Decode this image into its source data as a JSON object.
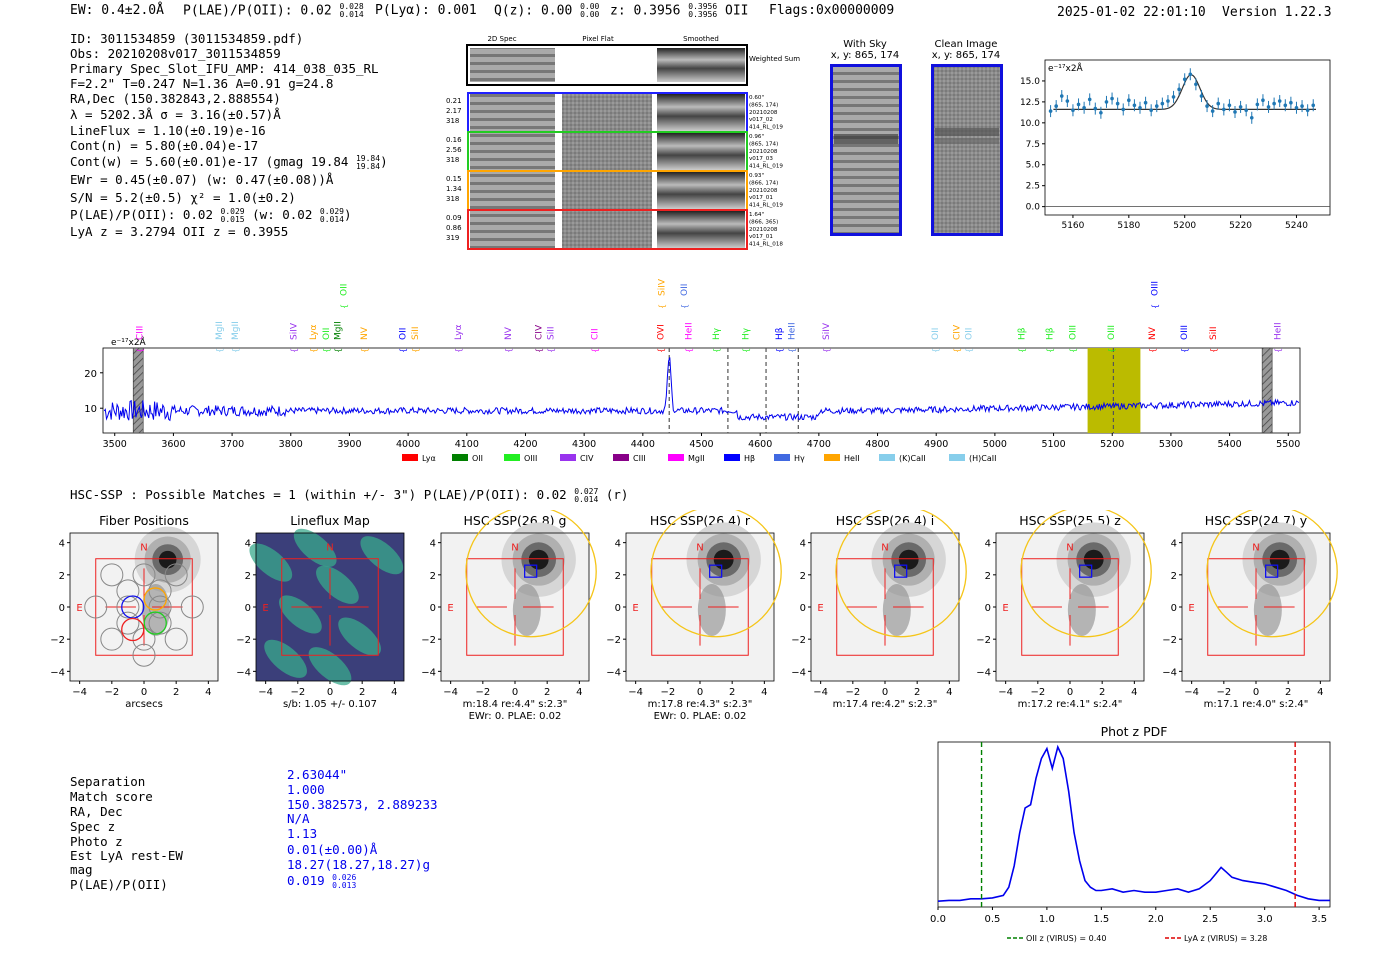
{
  "header": {
    "ew": "EW: 0.4±2.0Å",
    "plae_label": "P(LAE)/P(OII): 0.02",
    "plae_hi": "0.028",
    "plae_lo": "0.014",
    "plya": "P(Lyα): 0.001",
    "qz_label": "Q(z): 0.00",
    "qz_hi": "0.00",
    "qz_lo": "0.00",
    "z_label": "z: 0.3956",
    "z_hi": "0.3956",
    "z_lo": "0.3956",
    "z_line": "OII",
    "flags": "Flags:0x00000009",
    "timestamp": "2025-01-02 22:01:10",
    "version": "Version 1.22.3"
  },
  "info": {
    "id": "ID: 3011534859 (3011534859.pdf)",
    "obs": "Obs: 20210208v017_3011534859",
    "primary": "Primary Spec_Slot_IFU_AMP: 414_038_035_RL",
    "params": "F=2.2\"  T=0.247  N=1.36  A=0.91  g=24.8",
    "radec": "RA,Dec (150.382843,2.888554)",
    "lambda": "λ = 5202.3Å   σ = 3.16(±0.57)Å",
    "lineflux": "LineFlux = 1.10(±0.19)e-16",
    "contn": "Cont(n) = 5.80(±0.04)e-17",
    "contw": "Cont(w) = 5.60(±0.01)e-17 (gmag 19.84",
    "contw_hi": "19.84",
    "contw_lo": "19.84",
    "contw_end": ")",
    "ewr": "EWr = 0.45(±0.07) (w: 0.47(±0.08))Å",
    "sn": "S/N = 5.2(±0.5)  χ² = 1.0(±0.2)",
    "plae": "P(LAE)/P(OII): 0.02",
    "plae_hi": "0.029",
    "plae_lo": "0.015",
    "plae_w": "(w: 0.02",
    "plae_w_hi": "0.029",
    "plae_w_lo": "0.014",
    "plae_w_end": ")",
    "lyaz": "LyA z = 3.2794   OII z = 0.3955"
  },
  "cutouts": {
    "col_labels": [
      "2D Spec",
      "Pixel Flat",
      "Smoothed"
    ],
    "weighted_sum": "Weighted Sum",
    "rows": [
      {
        "left": [
          "0.21",
          "2.17",
          "318"
        ],
        "right": [
          "0.60\"",
          "(865, 174)",
          "20210208",
          "v017_02",
          "414_RL_019"
        ],
        "color": "#2020ff"
      },
      {
        "left": [
          "0.16",
          "2.56",
          "318"
        ],
        "right": [
          "0.96\"",
          "(865, 174)",
          "20210208",
          "v017_03",
          "414_RL_019"
        ],
        "color": "#22cc22"
      },
      {
        "left": [
          "0.15",
          "1.34",
          "318"
        ],
        "right": [
          "0.93\"",
          "(866, 174)",
          "20210208",
          "v017_01",
          "414_RL_019"
        ],
        "color": "#ffa500"
      },
      {
        "left": [
          "0.09",
          "0.86",
          "319"
        ],
        "right": [
          "1.64\"",
          "(866, 365)",
          "20210208",
          "v017_01",
          "414_RL_018"
        ],
        "color": "#ee2020"
      }
    ],
    "with_sky_title": "With Sky",
    "with_sky_xy": "x, y: 865, 174",
    "clean_title": "Clean Image",
    "clean_xy": "x, y: 865, 174"
  },
  "colors": {
    "blue": "#0000ee",
    "lya": "#ff0000",
    "oii": "#008000",
    "oiii": "#22ee22",
    "civ": "#9933ee",
    "ciii": "#880088",
    "mgii": "#ff00ff",
    "hbeta": "#0000ff",
    "hgamma": "#4169e1",
    "heii": "#ffa500",
    "kcaii": "#87ceeb",
    "hcaii": "#87ceeb",
    "band": "#bbbb00",
    "accent_blue": "#1f77b4"
  },
  "chart_data": [
    {
      "id": "line_fit",
      "type": "scatter",
      "title": "",
      "ylabel_inset": "e⁻¹⁷x2Å",
      "xticks": [
        5160,
        5180,
        5200,
        5220,
        5240
      ],
      "yticks": [
        0.0,
        2.5,
        5.0,
        7.5,
        10.0,
        12.5,
        15.0
      ],
      "xlim": [
        5150,
        5252
      ],
      "ylim": [
        -1,
        17.5
      ],
      "points": [
        [
          5152,
          11.4
        ],
        [
          5154,
          12.0
        ],
        [
          5156,
          13.2
        ],
        [
          5158,
          12.6
        ],
        [
          5160,
          11.5
        ],
        [
          5162,
          12.2
        ],
        [
          5164,
          11.8
        ],
        [
          5166,
          12.8
        ],
        [
          5168,
          11.7
        ],
        [
          5170,
          11.2
        ],
        [
          5172,
          12.5
        ],
        [
          5174,
          12.9
        ],
        [
          5176,
          12.3
        ],
        [
          5178,
          11.6
        ],
        [
          5180,
          12.7
        ],
        [
          5182,
          12.1
        ],
        [
          5184,
          11.8
        ],
        [
          5186,
          12.4
        ],
        [
          5188,
          11.5
        ],
        [
          5190,
          12.0
        ],
        [
          5192,
          12.3
        ],
        [
          5194,
          12.6
        ],
        [
          5196,
          13.1
        ],
        [
          5198,
          14.0
        ],
        [
          5200,
          15.2
        ],
        [
          5202,
          15.8
        ],
        [
          5204,
          14.6
        ],
        [
          5206,
          13.2
        ],
        [
          5208,
          12.0
        ],
        [
          5210,
          11.4
        ],
        [
          5212,
          12.3
        ],
        [
          5214,
          11.6
        ],
        [
          5216,
          12.1
        ],
        [
          5218,
          11.3
        ],
        [
          5220,
          11.9
        ],
        [
          5222,
          11.5
        ],
        [
          5224,
          10.6
        ],
        [
          5226,
          12.2
        ],
        [
          5228,
          12.7
        ],
        [
          5230,
          11.9
        ],
        [
          5232,
          12.3
        ],
        [
          5234,
          12.6
        ],
        [
          5236,
          12.1
        ],
        [
          5238,
          12.4
        ],
        [
          5240,
          11.8
        ],
        [
          5242,
          12.0
        ],
        [
          5244,
          11.5
        ],
        [
          5246,
          12.1
        ]
      ],
      "fit_baseline": 11.6,
      "fit_peak": 14.8,
      "fit_center": 5202.3,
      "fit_sigma": 3.16
    },
    {
      "id": "full_spectrum",
      "type": "line",
      "ylabel_inset": "e⁻¹⁷x2Å",
      "xticks": [
        3500,
        3600,
        3700,
        3800,
        3900,
        4000,
        4100,
        4200,
        4300,
        4400,
        4500,
        4600,
        4700,
        4800,
        4900,
        5000,
        5100,
        5200,
        5300,
        5400,
        5500
      ],
      "yticks": [
        10,
        20
      ],
      "xlim": [
        3480,
        5520
      ],
      "ylim": [
        3,
        27
      ],
      "band_range": [
        5158,
        5248
      ],
      "emission_peak": {
        "wave": 4445,
        "flux": 24.5
      },
      "dashed_lines": [
        4445,
        4545,
        4610,
        4665,
        5202
      ],
      "hatched": [
        3540,
        5464
      ],
      "line_labels": [
        {
          "name": "CIII",
          "wave": 3542,
          "color": "#ff00ff"
        },
        {
          "name": "MgII",
          "wave": 3678,
          "color": "#87ceeb"
        },
        {
          "name": "MgII",
          "wave": 3705,
          "color": "#87ceeb"
        },
        {
          "name": "SiIV",
          "wave": 3805,
          "color": "#9933ee"
        },
        {
          "name": "Lyα",
          "wave": 3838,
          "color": "#ffa500"
        },
        {
          "name": "OII",
          "wave": 3860,
          "color": "#22ee22"
        },
        {
          "name": "MgII",
          "wave": 3880,
          "color": "#008000"
        },
        {
          "name": "OII",
          "wave": 3890,
          "color": "#22ee22",
          "high": true
        },
        {
          "name": "NV",
          "wave": 3925,
          "color": "#ffa500"
        },
        {
          "name": "OII",
          "wave": 3990,
          "color": "#0000ff"
        },
        {
          "name": "SiII",
          "wave": 4012,
          "color": "#ffa500"
        },
        {
          "name": "Lyα",
          "wave": 4085,
          "color": "#9933ee"
        },
        {
          "name": "NV",
          "wave": 4170,
          "color": "#9933ee"
        },
        {
          "name": "CIV",
          "wave": 4222,
          "color": "#880088"
        },
        {
          "name": "SiII",
          "wave": 4243,
          "color": "#9933ee"
        },
        {
          "name": "CII",
          "wave": 4318,
          "color": "#ff00ff"
        },
        {
          "name": "OVI",
          "wave": 4430,
          "color": "#ff0000"
        },
        {
          "name": "SiIV",
          "wave": 4432,
          "color": "#ffa500",
          "high": true
        },
        {
          "name": "OII",
          "wave": 4470,
          "color": "#4169e1",
          "high": true
        },
        {
          "name": "HeII",
          "wave": 4478,
          "color": "#ff00ff"
        },
        {
          "name": "Hγ",
          "wave": 4525,
          "color": "#22ee22"
        },
        {
          "name": "Hγ",
          "wave": 4575,
          "color": "#22ee22"
        },
        {
          "name": "Hβ",
          "wave": 4632,
          "color": "#0000ff"
        },
        {
          "name": "HeII",
          "wave": 4653,
          "color": "#4169e1"
        },
        {
          "name": "SiIV",
          "wave": 4712,
          "color": "#9933ee"
        },
        {
          "name": "OII",
          "wave": 4898,
          "color": "#87ceeb"
        },
        {
          "name": "CIV",
          "wave": 4935,
          "color": "#ffa500"
        },
        {
          "name": "OII",
          "wave": 4955,
          "color": "#87ceeb"
        },
        {
          "name": "Hβ",
          "wave": 5045,
          "color": "#22ee22"
        },
        {
          "name": "Hβ",
          "wave": 5093,
          "color": "#22ee22"
        },
        {
          "name": "OIII",
          "wave": 5132,
          "color": "#22ee22"
        },
        {
          "name": "OIII",
          "wave": 5198,
          "color": "#22ee22"
        },
        {
          "name": "NV",
          "wave": 5268,
          "color": "#ff0000"
        },
        {
          "name": "OIII",
          "wave": 5272,
          "color": "#0000ff",
          "high": true
        },
        {
          "name": "OIII",
          "wave": 5322,
          "color": "#0000ff"
        },
        {
          "name": "SiII",
          "wave": 5372,
          "color": "#ff0000"
        },
        {
          "name": "HeII",
          "wave": 5482,
          "color": "#9933ee"
        }
      ],
      "legend": [
        {
          "label": "Lyα",
          "color": "#ff0000"
        },
        {
          "label": "OII",
          "color": "#008000"
        },
        {
          "label": "OIII",
          "color": "#22ee22"
        },
        {
          "label": "CIV",
          "color": "#9933ee"
        },
        {
          "label": "CIII",
          "color": "#880088"
        },
        {
          "label": "MgII",
          "color": "#ff00ff"
        },
        {
          "label": "Hβ",
          "color": "#0000ff"
        },
        {
          "label": "Hγ",
          "color": "#4169e1"
        },
        {
          "label": "HeII",
          "color": "#ffa500"
        },
        {
          "label": "(K)CaII",
          "color": "#87ceeb"
        },
        {
          "label": "(H)CaII",
          "color": "#87ceeb"
        }
      ]
    },
    {
      "id": "imaging_panels",
      "type": "heatmap",
      "match_line": "HSC-SSP : Possible Matches = 1 (within +/- 3\")  P(LAE)/P(OII): 0.02",
      "match_hi": "0.027",
      "match_lo": "0.014",
      "match_end": "(r)",
      "axis_ticks": [
        "−4",
        "−2",
        "0",
        "2",
        "4"
      ],
      "panels": [
        {
          "title": "Fiber Positions",
          "caption1": "arcsecs",
          "caption2": ""
        },
        {
          "title": "Lineflux Map",
          "caption1": "s/b: 1.05 +/- 0.107",
          "caption2": ""
        },
        {
          "title": "HSC SSP(26.8) g",
          "caption1": "m:18.4  re:4.4\"  s:2.3\"",
          "caption2": "EWr: 0. PLAE: 0.02"
        },
        {
          "title": "HSC SSP(26.4) r",
          "caption1": "m:17.8  re:4.3\"  s:2.3\"",
          "caption2": "EWr: 0. PLAE: 0.02"
        },
        {
          "title": "HSC SSP(26.4) i",
          "caption1": "m:17.4  re:4.2\"  s:2.3\"",
          "caption2": ""
        },
        {
          "title": "HSC SSP(25.5) z",
          "caption1": "m:17.2  re:4.1\"  s:2.4\"",
          "caption2": ""
        },
        {
          "title": "HSC SSP(24.7) y",
          "caption1": "m:17.1  re:4.0\"  s:2.4\"",
          "caption2": ""
        }
      ],
      "compass_n": "N",
      "compass_e": "E"
    },
    {
      "id": "photz_pdf",
      "type": "line",
      "title": "Phot z PDF",
      "xticks": [
        0.0,
        0.5,
        1.0,
        1.5,
        2.0,
        2.5,
        3.0,
        3.5
      ],
      "xlim": [
        0,
        3.6
      ],
      "ylim": [
        0,
        1.0
      ],
      "x": [
        0,
        0.1,
        0.2,
        0.3,
        0.4,
        0.5,
        0.6,
        0.65,
        0.7,
        0.75,
        0.8,
        0.85,
        0.9,
        0.95,
        1.0,
        1.05,
        1.1,
        1.15,
        1.2,
        1.25,
        1.3,
        1.35,
        1.4,
        1.45,
        1.5,
        1.6,
        1.7,
        1.8,
        1.9,
        2.0,
        2.1,
        2.2,
        2.3,
        2.4,
        2.5,
        2.55,
        2.6,
        2.65,
        2.7,
        2.8,
        2.9,
        3.0,
        3.1,
        3.2,
        3.3,
        3.4,
        3.5,
        3.6
      ],
      "y": [
        0.035,
        0.04,
        0.04,
        0.05,
        0.05,
        0.055,
        0.07,
        0.12,
        0.25,
        0.45,
        0.6,
        0.62,
        0.78,
        0.9,
        0.96,
        0.84,
        0.97,
        0.9,
        0.7,
        0.45,
        0.28,
        0.16,
        0.12,
        0.1,
        0.1,
        0.11,
        0.09,
        0.1,
        0.09,
        0.09,
        0.1,
        0.11,
        0.09,
        0.11,
        0.16,
        0.2,
        0.24,
        0.21,
        0.18,
        0.16,
        0.15,
        0.14,
        0.12,
        0.1,
        0.07,
        0.05,
        0.04,
        0.04
      ],
      "oii_z": 0.4,
      "lya_z": 3.28,
      "legend": [
        "OII z (VIRUS) = 0.40",
        "LyA z (VIRUS) = 3.28"
      ]
    }
  ],
  "bottom_table": {
    "labels": [
      "Separation",
      "Match score",
      "RA, Dec",
      "Spec z",
      "Photo z",
      "Est LyA rest-EW",
      "mag",
      "P(LAE)/P(OII)"
    ],
    "values": [
      "2.63044\"",
      "1.000",
      "150.382573, 2.889233",
      "N/A",
      "1.13",
      "0.01(±0.00)Å",
      "18.27(18.27,18.27)g",
      "0.019"
    ],
    "plae_hi": "0.026",
    "plae_lo": "0.013"
  }
}
